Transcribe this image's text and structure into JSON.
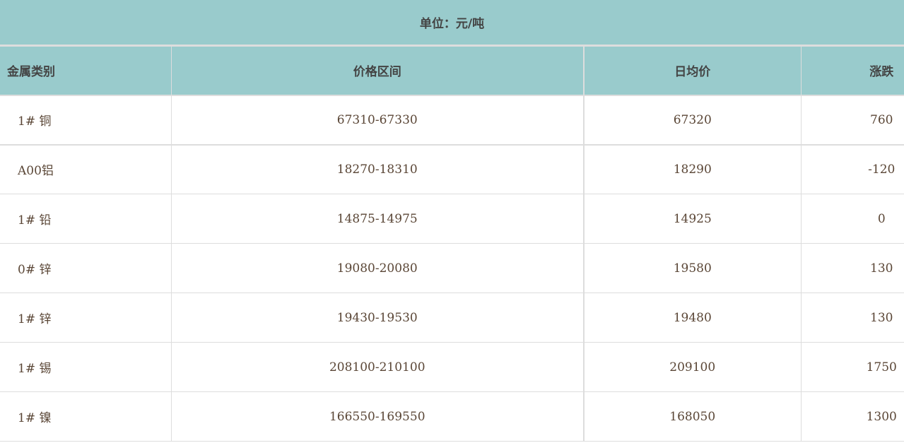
{
  "unit_label": "单位：元/吨",
  "columns": [
    "金属类别",
    "价格区间",
    "日均价",
    "涨跌"
  ],
  "rows": [
    [
      "1# 铜",
      "67310-67330",
      "67320",
      "760"
    ],
    [
      "A00铝",
      "18270-18310",
      "18290",
      "-120"
    ],
    [
      "1# 铅",
      "14875-14975",
      "14925",
      "0"
    ],
    [
      "0# 锌",
      "19080-20080",
      "19580",
      "130"
    ],
    [
      "1# 锌",
      "19430-19530",
      "19480",
      "130"
    ],
    [
      "1# 锡",
      "208100-210100",
      "209100",
      "1750"
    ],
    [
      "1# 镍",
      "166550-169550",
      "168050",
      "1300"
    ]
  ],
  "colors": {
    "header_bg": "#99cbcc",
    "border": "#dddddd"
  }
}
